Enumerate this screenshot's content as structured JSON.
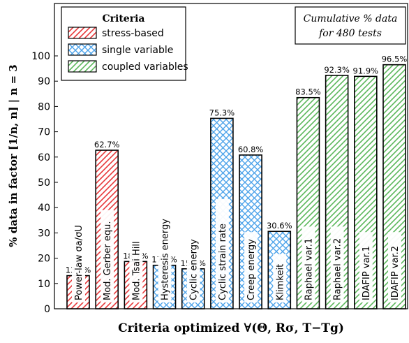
{
  "chart_data": {
    "type": "bar",
    "ylabel": "% data in factor [1/n, n] | n = 3",
    "xlabel": "Criteria optimized ∀(Θ, Rσ, T−Tg)",
    "ylim": [
      0,
      100
    ],
    "yticks": [
      0,
      10,
      20,
      30,
      40,
      50,
      60,
      70,
      80,
      90,
      100
    ],
    "annotation_line1": "Cumulative % data",
    "annotation_line2": "for 480 tests",
    "legend": {
      "title": "Criteria",
      "position": "top-left",
      "entries": [
        {
          "label": "stress-based",
          "group": "stress"
        },
        {
          "label": "single variable",
          "group": "single"
        },
        {
          "label": "coupled variables",
          "group": "coupled"
        }
      ]
    },
    "colors": {
      "stress": "#e8383a",
      "single": "#4da3ea",
      "coupled": "#5cb85c"
    },
    "bars": [
      {
        "category": "Power-law σa/σU",
        "value": 13.1,
        "value_label": "13.1%",
        "group": "stress"
      },
      {
        "category": "Mod. Gerber equ.",
        "value": 62.7,
        "value_label": "62.7%",
        "group": "stress"
      },
      {
        "category": "Mod. Tsai Hill",
        "value": 18.7,
        "value_label": "18.7%",
        "group": "stress"
      },
      {
        "category": "Hysteresis energy",
        "value": 17.2,
        "value_label": "17.2%",
        "group": "single"
      },
      {
        "category": "Cyclic energy",
        "value": 15.8,
        "value_label": "15.8%",
        "group": "single"
      },
      {
        "category": "Cyclic strain rate",
        "value": 75.3,
        "value_label": "75.3%",
        "group": "single"
      },
      {
        "category": "Creep energy",
        "value": 60.8,
        "value_label": "60.8%",
        "group": "single"
      },
      {
        "category": "Klimkeit",
        "value": 30.6,
        "value_label": "30.6%",
        "group": "single"
      },
      {
        "category": "Raphael var.1",
        "value": 83.5,
        "value_label": "83.5%",
        "group": "coupled"
      },
      {
        "category": "Raphael var.2",
        "value": 92.3,
        "value_label": "92.3%",
        "group": "coupled"
      },
      {
        "category": "IDAFIP var.1",
        "value": 91.9,
        "value_label": "91.9%",
        "group": "coupled"
      },
      {
        "category": "IDAFIP var.2",
        "value": 96.5,
        "value_label": "96.5%",
        "group": "coupled"
      }
    ]
  }
}
